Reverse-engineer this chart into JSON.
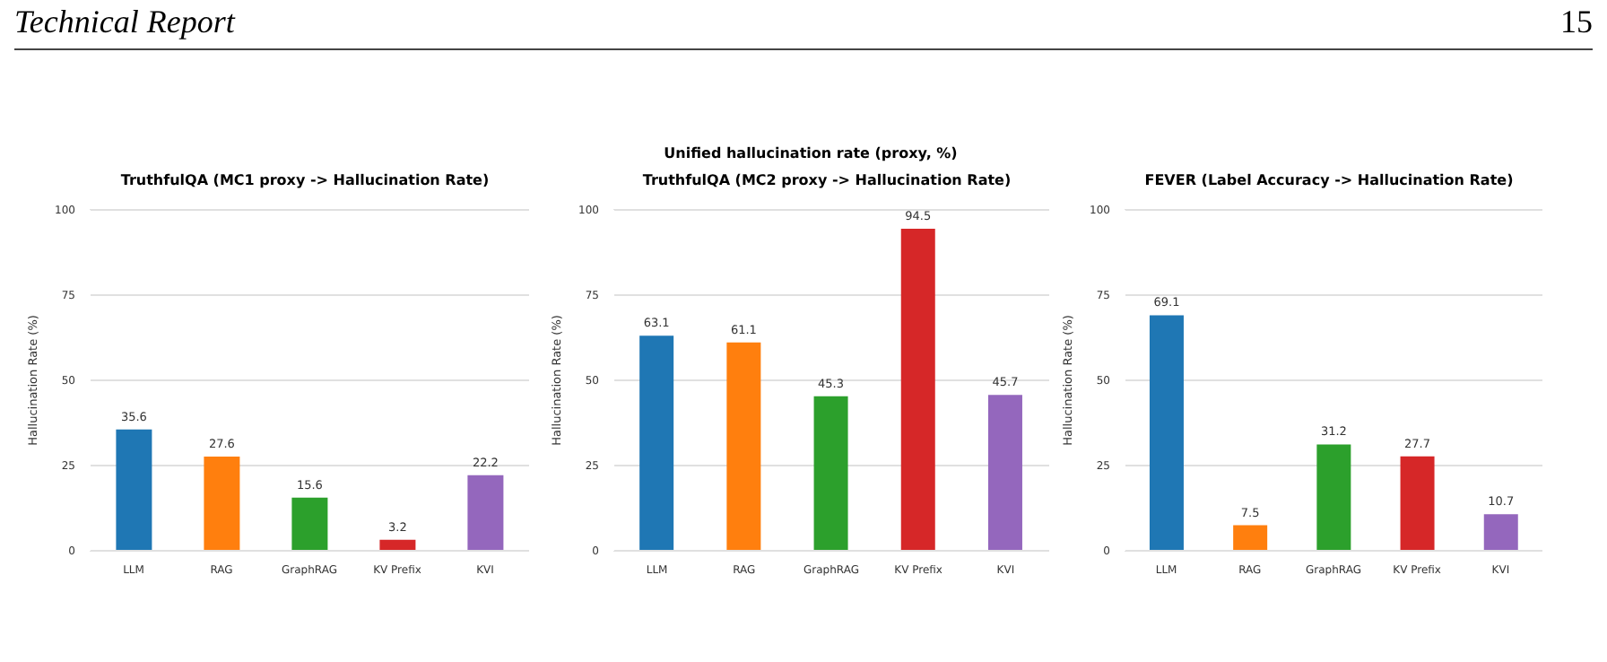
{
  "chart_data": [
    {
      "type": "bar",
      "title": "TruthfulQA (MC1 proxy -> Hallucination Rate)",
      "ylabel": "Hallucination Rate (%)",
      "categories": [
        "LLM",
        "RAG",
        "GraphRAG",
        "KV Prefix",
        "KVI"
      ],
      "values": [
        35.6,
        27.6,
        15.6,
        3.2,
        22.2
      ],
      "colors": [
        "#1f77b4",
        "#ff7f0e",
        "#2ca02c",
        "#d62728",
        "#9467bd"
      ],
      "ylim": [
        0,
        100
      ],
      "yticks": [
        0,
        25,
        50,
        75,
        100
      ],
      "grid": "y",
      "data_labels": true,
      "annotations": [
        "Technical Report",
        "15"
      ]
    },
    {
      "type": "bar",
      "title": "TruthfulQA (MC2 proxy -> Hallucination Rate)",
      "ylabel": "Hallucination Rate (%)",
      "categories": [
        "LLM",
        "RAG",
        "GraphRAG",
        "KV Prefix",
        "KVI"
      ],
      "values": [
        63.1,
        61.1,
        45.3,
        94.5,
        45.7
      ],
      "colors": [
        "#1f77b4",
        "#ff7f0e",
        "#2ca02c",
        "#d62728",
        "#9467bd"
      ],
      "ylim": [
        0,
        100
      ],
      "yticks": [
        0,
        25,
        50,
        75,
        100
      ],
      "grid": "y",
      "data_labels": true,
      "annotations": [
        "Unified hallucination rate (proxy, %)"
      ]
    },
    {
      "type": "bar",
      "title": "FEVER (Label Accuracy -> Hallucination Rate)",
      "ylabel": "Hallucination Rate (%)",
      "categories": [
        "LLM",
        "RAG",
        "GraphRAG",
        "KV Prefix",
        "KVI"
      ],
      "values": [
        69.1,
        7.5,
        31.2,
        27.7,
        10.7
      ],
      "colors": [
        "#1f77b4",
        "#ff7f0e",
        "#2ca02c",
        "#d62728",
        "#9467bd"
      ],
      "ylim": [
        0,
        100
      ],
      "yticks": [
        0,
        25,
        50,
        75,
        100
      ],
      "grid": "y",
      "data_labels": true
    }
  ]
}
